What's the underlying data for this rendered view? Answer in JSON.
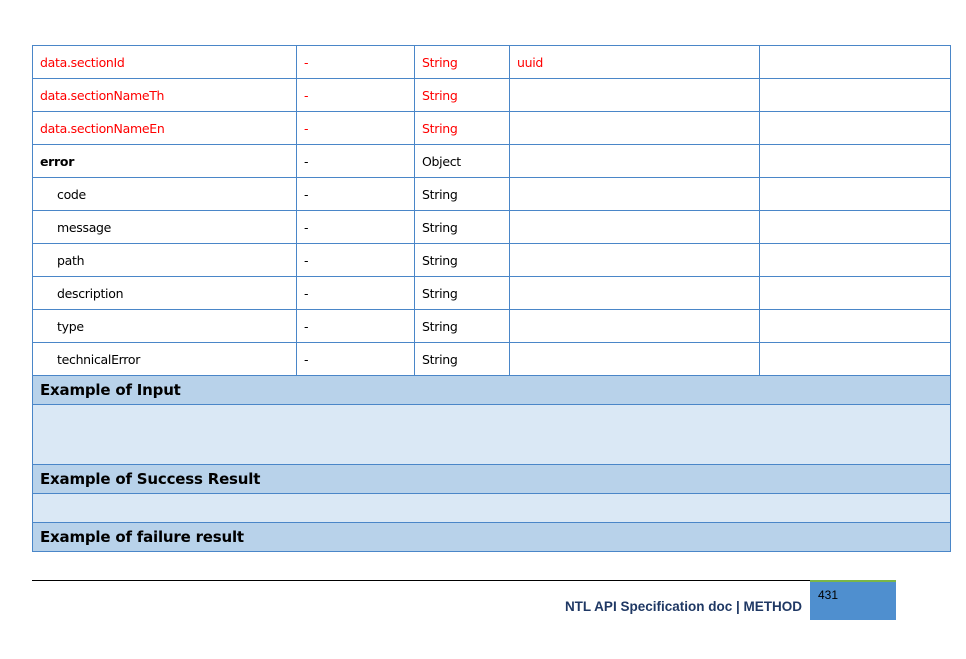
{
  "rows": [
    {
      "field": "data.sectionId",
      "req": "-",
      "type": "String",
      "desc": "uuid",
      "note": "",
      "style": "red"
    },
    {
      "field": "data.sectionNameTh",
      "req": "-",
      "type": "String",
      "desc": "",
      "note": "",
      "style": "red"
    },
    {
      "field": "data.sectionNameEn",
      "req": "-",
      "type": "String",
      "desc": "",
      "note": "",
      "style": "red"
    },
    {
      "field": "error",
      "req": "-",
      "type": "Object",
      "desc": "",
      "note": "",
      "style": "bold"
    },
    {
      "field": "code",
      "req": "-",
      "type": "String",
      "desc": "",
      "note": "",
      "style": "indent"
    },
    {
      "field": "message",
      "req": "-",
      "type": "String",
      "desc": "",
      "note": "",
      "style": "indent"
    },
    {
      "field": "path",
      "req": "-",
      "type": "String",
      "desc": "",
      "note": "",
      "style": "indent"
    },
    {
      "field": "description",
      "req": "-",
      "type": "String",
      "desc": "",
      "note": "",
      "style": "indent"
    },
    {
      "field": "type",
      "req": "-",
      "type": "String",
      "desc": "",
      "note": "",
      "style": "indent"
    },
    {
      "field": "technicalError",
      "req": "-",
      "type": "String",
      "desc": "",
      "note": "",
      "style": "indent"
    }
  ],
  "sections": {
    "input": "Example of Input",
    "success": "Example of Success Result",
    "failure": "Example of failure result"
  },
  "footer": {
    "title": "NTL API Specification doc | METHOD",
    "page": "431"
  },
  "colors": {
    "red": "#ff0000",
    "border": "#4a86c8",
    "header_bg": "#b8d2ea",
    "body_bg": "#dae8f5",
    "page_box": "#4f8fcf"
  }
}
